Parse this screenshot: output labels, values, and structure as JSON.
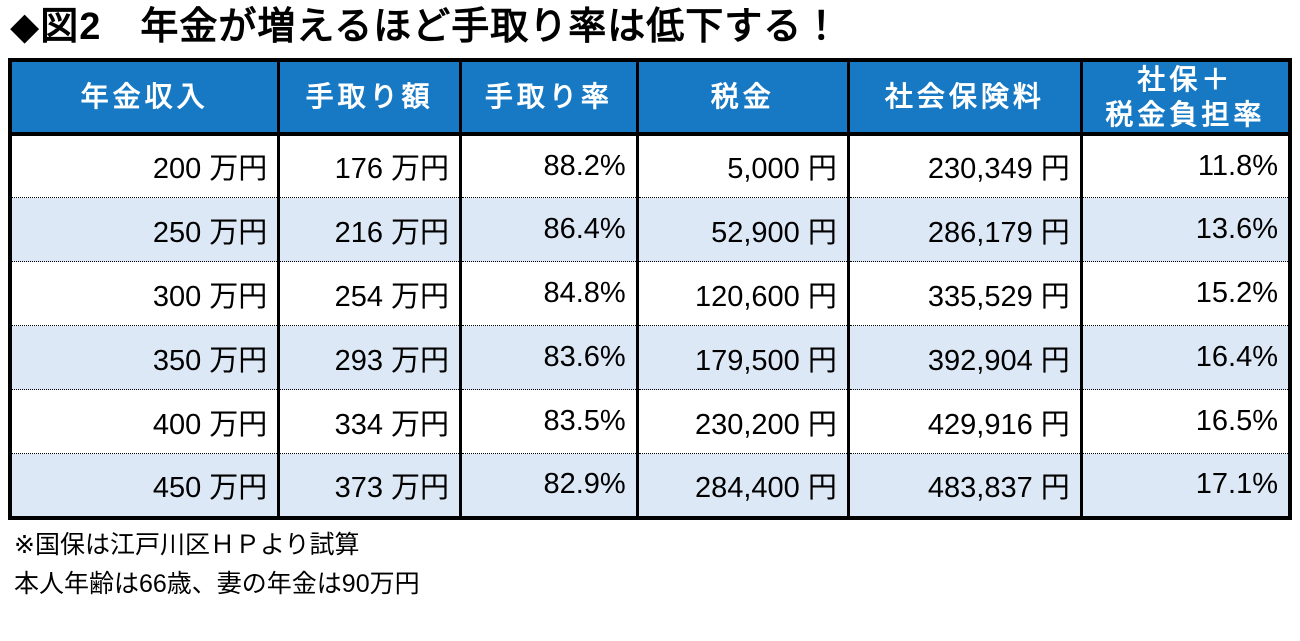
{
  "chart_data": {
    "type": "table",
    "title": "◆図2　年金が増えるほど手取り率は低下する！",
    "columns": [
      "年金収入",
      "手取り額",
      "手取り率",
      "税金",
      "社会保険料",
      "社保＋\n税金負担率"
    ],
    "rows": [
      [
        "200 万円",
        "176 万円",
        "88.2%",
        "5,000 円",
        "230,349 円",
        "11.8%"
      ],
      [
        "250 万円",
        "216 万円",
        "86.4%",
        "52,900 円",
        "286,179 円",
        "13.6%"
      ],
      [
        "300 万円",
        "254 万円",
        "84.8%",
        "120,600 円",
        "335,529 円",
        "15.2%"
      ],
      [
        "350 万円",
        "293 万円",
        "83.6%",
        "179,500 円",
        "392,904 円",
        "16.4%"
      ],
      [
        "400 万円",
        "334 万円",
        "83.5%",
        "230,200 円",
        "429,916 円",
        "16.5%"
      ],
      [
        "450 万円",
        "373 万円",
        "82.9%",
        "284,400 円",
        "483,837 円",
        "17.1%"
      ]
    ],
    "notes": [
      "※国保は江戸川区ＨＰより試算",
      "本人年齢は66歳、妻の年金は90万円"
    ]
  },
  "colors": {
    "header_bg": "#1779C4",
    "header_text": "#FFFFFF",
    "row_bg": "#FFFFFF",
    "row_alt_bg": "#DCE8F5",
    "border": "#000000"
  }
}
